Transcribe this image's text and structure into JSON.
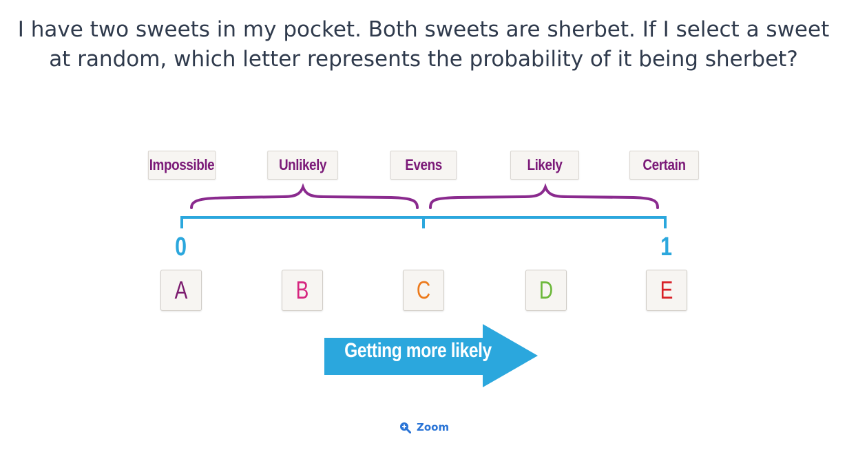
{
  "question": "I have two sweets in my pocket. Both sweets are sherbet. If I select a sweet at random, which letter represents the probability of it being sherbet?",
  "scale_labels": [
    "Impossible",
    "Unlikely",
    "Evens",
    "Likely",
    "Certain"
  ],
  "scale_ends": {
    "start": "0",
    "end": "1"
  },
  "letters": [
    {
      "text": "A",
      "color": "#7b1a6e"
    },
    {
      "text": "B",
      "color": "#d6257f"
    },
    {
      "text": "C",
      "color": "#ec7a1c"
    },
    {
      "text": "D",
      "color": "#6cb83a"
    },
    {
      "text": "E",
      "color": "#d81f26"
    }
  ],
  "arrow_label": "Getting more likely",
  "zoom": {
    "label": "Zoom",
    "icon": "zoom-in-icon"
  },
  "colors": {
    "label_text": "#7b1a78",
    "brace": "#8a2a8e",
    "scale_line": "#2ba7dd",
    "arrow": "#2ba7dd",
    "link": "#2a74d6"
  }
}
